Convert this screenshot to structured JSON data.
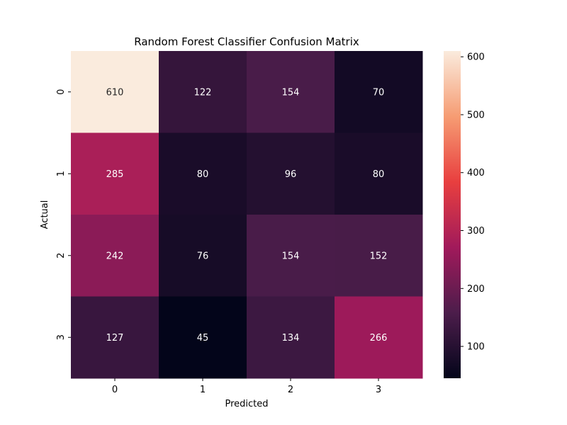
{
  "chart_data": {
    "type": "heatmap",
    "title": "Random Forest Classifier Confusion Matrix",
    "xlabel": "Predicted",
    "ylabel": "Actual",
    "x_categories": [
      "0",
      "1",
      "2",
      "3"
    ],
    "y_categories": [
      "0",
      "1",
      "2",
      "3"
    ],
    "values": [
      [
        610,
        122,
        154,
        70
      ],
      [
        285,
        80,
        96,
        80
      ],
      [
        242,
        76,
        154,
        152
      ],
      [
        127,
        45,
        134,
        266
      ]
    ],
    "colorbar": {
      "min": 45,
      "max": 610,
      "ticks": [
        100,
        200,
        300,
        400,
        500,
        600
      ],
      "colormap": "rocket",
      "colors": [
        "#03051a",
        "#4c1d4b",
        "#a11a5b",
        "#e83f3f",
        "#f69c73",
        "#faebdd"
      ]
    },
    "grid": false,
    "legend": "colorbar-right"
  }
}
